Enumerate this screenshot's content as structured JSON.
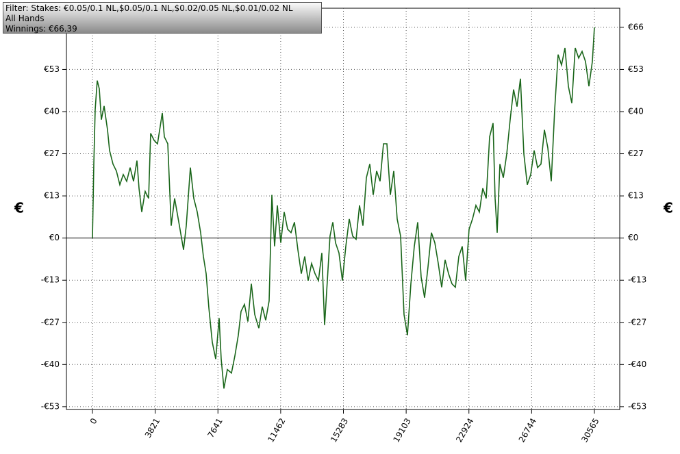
{
  "chart_data": {
    "type": "line",
    "info": [
      "Filter: Stakes: €0.05/0.1 NL,$0.05/0.1 NL,$0.02/0.05 NL,$0.01/0.02 NL",
      "All Hands",
      "Winnings: €66.39"
    ],
    "ylabel": "€",
    "y2label": "€",
    "xlim": [
      -1585,
      32108
    ],
    "ylim": [
      -54,
      72.4
    ],
    "xticks": [
      0,
      3821,
      7641,
      11462,
      15283,
      19103,
      22924,
      26744,
      30565
    ],
    "yticks": [
      {
        "value": -53.11,
        "label": "-€53"
      },
      {
        "value": -39.83,
        "label": "-€40"
      },
      {
        "value": -26.56,
        "label": "-€27"
      },
      {
        "value": -13.28,
        "label": "-€13"
      },
      {
        "value": 0,
        "label": "€0"
      },
      {
        "value": 13.28,
        "label": "€13"
      },
      {
        "value": 26.56,
        "label": "€27"
      },
      {
        "value": 39.83,
        "label": "€40"
      },
      {
        "value": 53.11,
        "label": "€53"
      },
      {
        "value": 66.39,
        "label": "€66"
      }
    ],
    "grid": true,
    "series": [
      {
        "color": "#1a661a",
        "x": [
          0,
          42,
          83,
          167,
          292,
          417,
          542,
          709,
          917,
          1042,
          1251,
          1459,
          1668,
          1876,
          2085,
          2293,
          2502,
          2710,
          2835,
          3002,
          3211,
          3419,
          3544,
          3753,
          3961,
          4253,
          4378,
          4587,
          4795,
          5004,
          5296,
          5546,
          5712,
          5962,
          6171,
          6379,
          6588,
          6755,
          6921,
          7088,
          7296,
          7505,
          7713,
          7838,
          8005,
          8213,
          8464,
          8672,
          8881,
          9047,
          9256,
          9464,
          9673,
          9881,
          10131,
          10340,
          10548,
          10757,
          10923,
          11090,
          11257,
          11465,
          11674,
          11882,
          12091,
          12299,
          12508,
          12716,
          12925,
          13133,
          13342,
          13550,
          13759,
          13967,
          14134,
          14301,
          14467,
          14634,
          14801,
          15010,
          15218,
          15427,
          15635,
          15844,
          16052,
          16261,
          16469,
          16678,
          16886,
          17095,
          17303,
          17512,
          17720,
          17929,
          18137,
          18346,
          18554,
          18763,
          18971,
          19180,
          19388,
          19597,
          19805,
          20014,
          20222,
          20431,
          20639,
          20848,
          21056,
          21265,
          21473,
          21682,
          21890,
          22099,
          22307,
          22516,
          22724,
          22933,
          23141,
          23350,
          23558,
          23767,
          23975,
          24184,
          24392,
          24517,
          24642,
          24809,
          25018,
          25226,
          25435,
          25643,
          25852,
          26060,
          26269,
          26477,
          26686,
          26894,
          27103,
          27311,
          27520,
          27728,
          27937,
          28145,
          28354,
          28562,
          28771,
          28979,
          29188,
          29396,
          29605,
          29813,
          30022,
          30230,
          30439,
          30565
        ],
        "values": [
          0,
          11.4,
          23.3,
          40.5,
          49.6,
          47,
          37.3,
          41.6,
          34.1,
          27.6,
          23.3,
          21.1,
          16.8,
          20,
          17.9,
          22.2,
          17.9,
          24.4,
          15.7,
          8.2,
          14.7,
          12.5,
          33,
          30.8,
          29.7,
          39.4,
          31.9,
          29.7,
          3.9,
          12.5,
          3.9,
          -3.7,
          3.9,
          22.2,
          12.5,
          8.2,
          1.7,
          -5.8,
          -11.2,
          -22,
          -32.8,
          -38.1,
          -25.2,
          -38.1,
          -47.4,
          -41.4,
          -42.5,
          -37.1,
          -30.6,
          -23.1,
          -20.9,
          -26.3,
          -14.4,
          -24.1,
          -28.4,
          -21.6,
          -25.9,
          -19.8,
          13.6,
          -2.6,
          10.3,
          -1.5,
          8.2,
          2.8,
          1.7,
          5,
          -3.7,
          -11.2,
          -5.8,
          -13.4,
          -8,
          -11.2,
          -13.4,
          -4.7,
          -27.4,
          -13.4,
          0.6,
          5,
          -1.5,
          -4.7,
          -13.4,
          -2.6,
          6,
          0.6,
          -0.4,
          10.3,
          3.9,
          19,
          23.3,
          13.6,
          21.1,
          17.9,
          29.7,
          29.7,
          13.6,
          21.1,
          6,
          0.6,
          -24.1,
          -30.6,
          -14.4,
          -2.6,
          5,
          -12.3,
          -18.8,
          -9.1,
          1.7,
          -1.5,
          -8,
          -15.5,
          -6.9,
          -11.2,
          -14.4,
          -15.5,
          -5.8,
          -2.6,
          -13.4,
          2.8,
          6,
          10.3,
          8.2,
          15.7,
          12.5,
          31.9,
          36.2,
          12.5,
          1.7,
          23.3,
          19,
          26.5,
          37.3,
          46.8,
          41.4,
          50.2,
          26.5,
          16.8,
          20,
          27.6,
          22.2,
          23.3,
          34.1,
          28.4,
          17.9,
          40.5,
          57.8,
          54.5,
          59.9,
          47.8,
          42.5,
          59.9,
          56.7,
          58.8,
          55.6,
          47.8,
          55.6,
          66.39
        ]
      }
    ]
  }
}
